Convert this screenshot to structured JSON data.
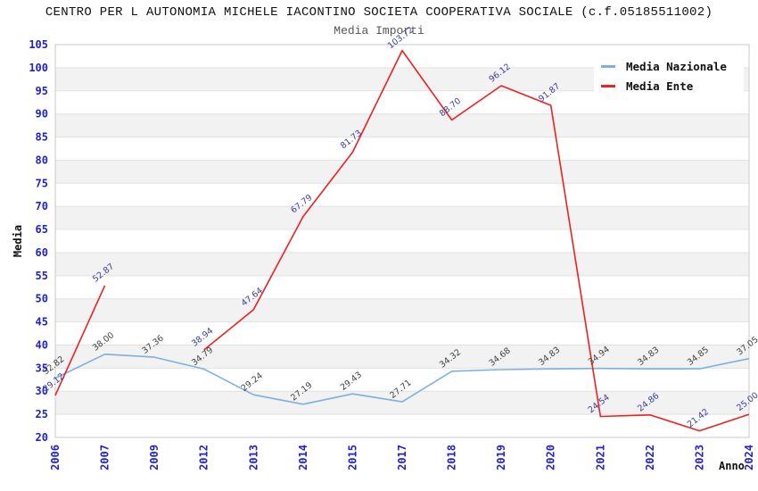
{
  "header": {
    "title": "CENTRO PER L AUTONOMIA MICHELE IACONTINO SOCIETA COOPERATIVA SOCIALE (c.f.05185511002)",
    "subtitle": "Media Importi"
  },
  "axes": {
    "y_title": "Media",
    "x_title": "Anno"
  },
  "legend": {
    "items": [
      {
        "label": "Media Nazionale",
        "color": "#7cb0e2"
      },
      {
        "label": "Media Ente",
        "color": "#ee2020"
      }
    ]
  },
  "chart_data": {
    "type": "line",
    "title": "Media Importi",
    "xlabel": "Anno",
    "ylabel": "Media",
    "categories": [
      "2006",
      "2007",
      "2009",
      "2012",
      "2013",
      "2014",
      "2015",
      "2017",
      "2018",
      "2019",
      "2020",
      "2021",
      "2022",
      "2023",
      "2024"
    ],
    "series": [
      {
        "name": "Media Nazionale",
        "color": "#7cb0e2",
        "label_color": "#404040",
        "values": [
          32.82,
          38.0,
          37.36,
          34.79,
          29.24,
          27.19,
          29.43,
          27.71,
          34.32,
          34.68,
          34.83,
          34.94,
          34.83,
          34.85,
          37.05
        ],
        "labels": [
          "32.82",
          "38.00",
          "37.36",
          "34.79",
          "29.24",
          "27.19",
          "29.43",
          "27.71",
          "34.32",
          "34.68",
          "34.83",
          "34.94",
          "34.83",
          "34.85",
          "37.05"
        ]
      },
      {
        "name": "Media Ente",
        "color": "#ee2020",
        "label_color": "#3a3aa0",
        "values": [
          29.12,
          52.87,
          null,
          38.94,
          47.64,
          67.79,
          81.73,
          103.72,
          88.7,
          96.12,
          91.87,
          24.54,
          24.86,
          21.42,
          25.0
        ],
        "labels": [
          "29.12",
          "52.87",
          null,
          "38.94",
          "47.64",
          "67.79",
          "81.73",
          "103.72",
          "88.70",
          "96.12",
          "91.87",
          "24.54",
          "24.86",
          "21.42",
          "25.00"
        ]
      }
    ],
    "ylim": [
      20,
      105
    ],
    "y_step": 5,
    "grid": true,
    "legend_position": "top-right",
    "tick_color": "#2222cc",
    "band_color": "#f2f2f2",
    "grid_color": "#e2e2e2",
    "border_color": "#c9c9c9"
  }
}
